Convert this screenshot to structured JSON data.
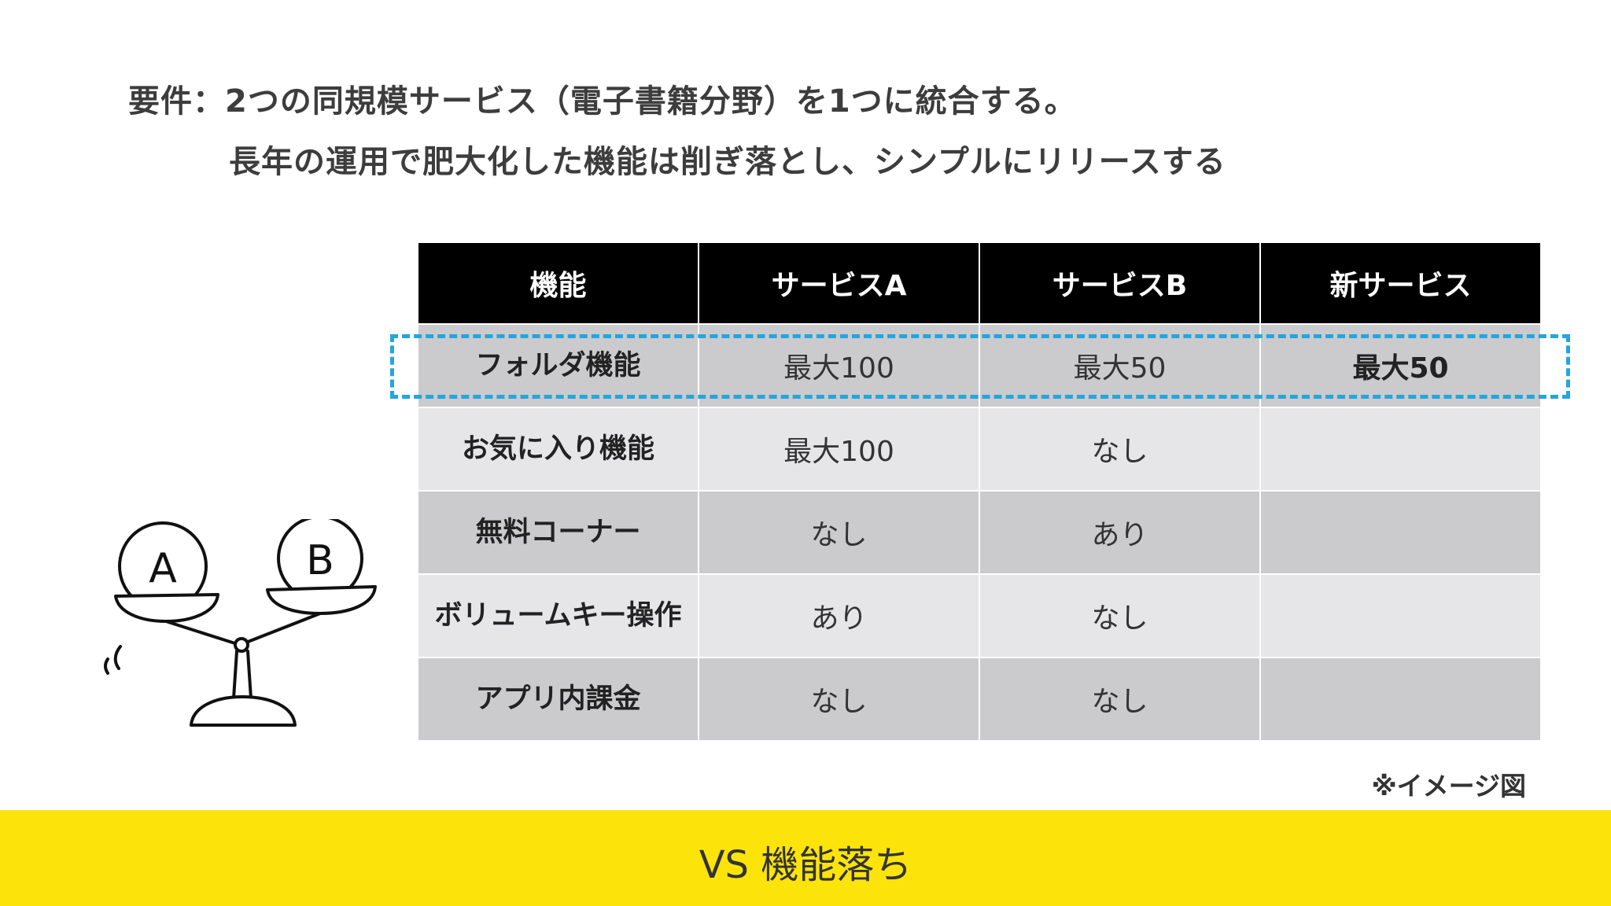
{
  "requirement": {
    "line1": "要件：2つの同規模サービス（電子書籍分野）を1つに統合する。",
    "line2": "長年の運用で肥大化した機能は削ぎ落とし、シンプルにリリースする"
  },
  "table": {
    "headers": [
      "機能",
      "サービスA",
      "サービスB",
      "新サービス"
    ],
    "rows": [
      {
        "feature": "フォルダ機能",
        "a": "最大100",
        "b": "最大50",
        "new": "最大50"
      },
      {
        "feature": "お気に入り機能",
        "a": "最大100",
        "b": "なし",
        "new": ""
      },
      {
        "feature": "無料コーナー",
        "a": "なし",
        "b": "あり",
        "new": ""
      },
      {
        "feature": "ボリュームキー操作",
        "a": "あり",
        "b": "なし",
        "new": ""
      },
      {
        "feature": "アプリ内課金",
        "a": "なし",
        "b": "なし",
        "new": ""
      }
    ]
  },
  "illustration": {
    "left_label": "A",
    "right_label": "B",
    "icon": "balance-scale-icon"
  },
  "note": "※イメージ図",
  "banner": {
    "text": "VS 機能落ち",
    "color": "#fce40a"
  },
  "colors": {
    "highlight": "#22a6df",
    "header_bg": "#000000"
  }
}
